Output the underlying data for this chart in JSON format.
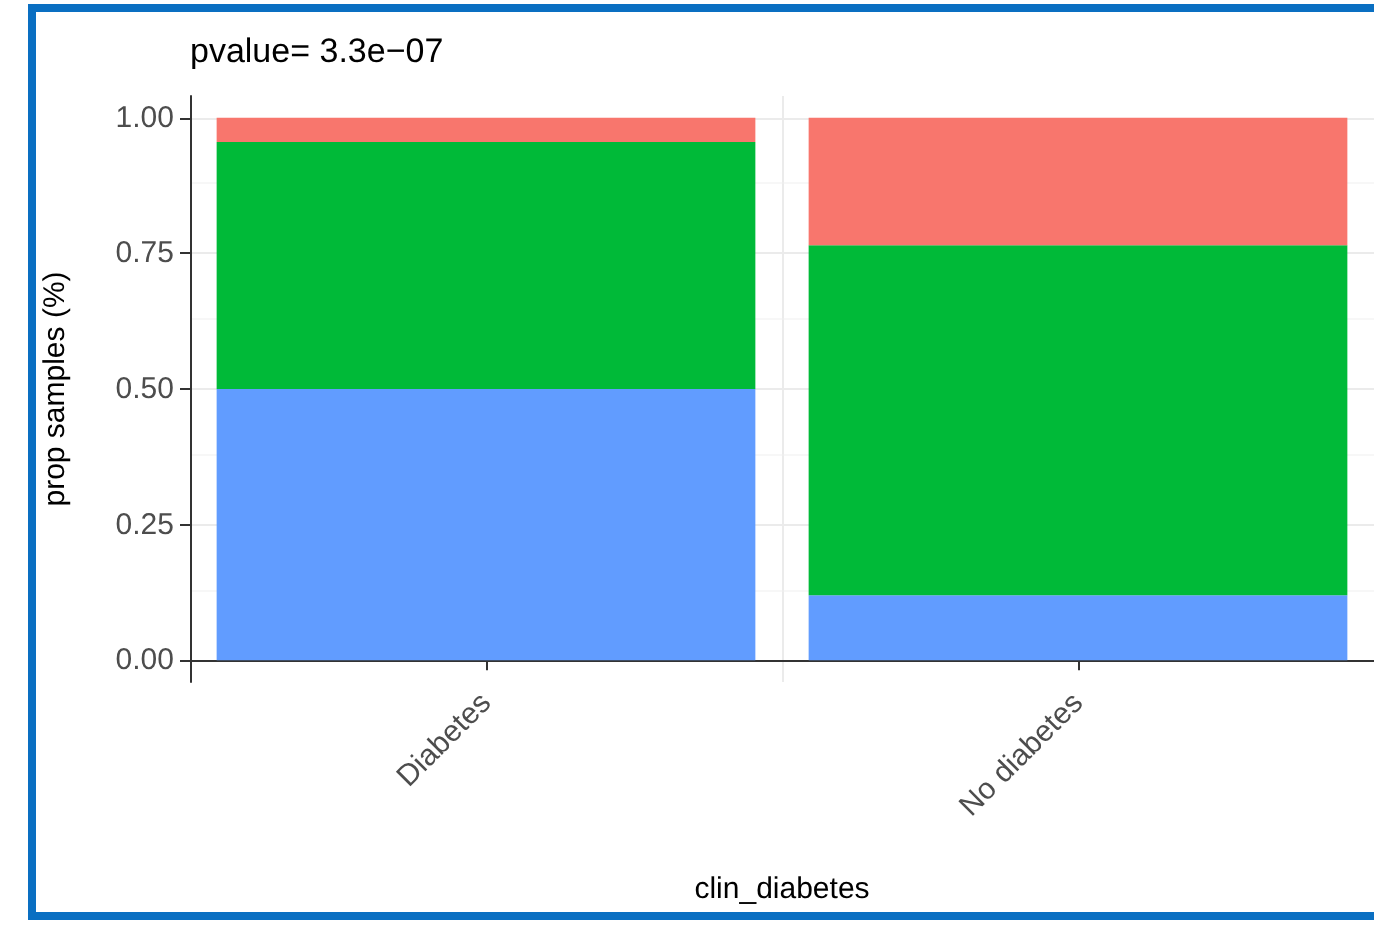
{
  "chart_data": {
    "type": "bar",
    "title": "pvalue= 3.3e−07",
    "xlabel": "clin_diabetes",
    "ylabel": "prop samples (%)",
    "categories": [
      "Diabetes",
      "No diabetes"
    ],
    "stacked": true,
    "series": [
      {
        "color": "#619cff",
        "values": [
          0.5,
          0.12
        ]
      },
      {
        "color": "#00ba38",
        "values": [
          0.455,
          0.645
        ]
      },
      {
        "color": "#f8766d",
        "values": [
          0.045,
          0.235
        ]
      }
    ],
    "ylim": [
      -0.04,
      1.04
    ],
    "yticks": [
      {
        "value": 0,
        "label": "0.00"
      },
      {
        "value": 0.25,
        "label": "0.25"
      },
      {
        "value": 0.5,
        "label": "0.50"
      },
      {
        "value": 0.75,
        "label": "0.75"
      },
      {
        "value": 1,
        "label": "1.00"
      }
    ],
    "grid": true
  }
}
